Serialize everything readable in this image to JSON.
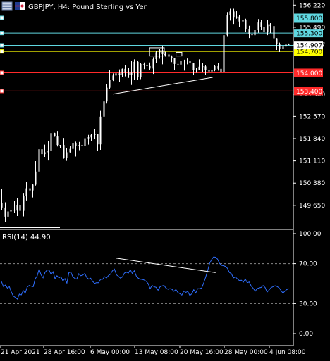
{
  "chart": {
    "symbol_label": "GBPJPY, H4:  Pound Sterling vs Yen",
    "rsi_label": "RSI(14) 44.90"
  },
  "colors": {
    "background": "#000000",
    "candle": "#ffffff",
    "hline_cyan": "#5fd7e0",
    "hline_yellow": "#ffff00",
    "hline_red": "#ff2a2a",
    "rsi_line": "#2f6fff",
    "rsi_level": "#888888",
    "trend": "#ffffff"
  },
  "chart_data": [
    {
      "type": "candlestick",
      "title": "GBPJPY, H4:  Pound Sterling vs Yen",
      "ylim": [
        149.0,
        156.25
      ],
      "y_ticks": [
        "156.220",
        "155.490",
        "154.907",
        "153.300",
        "152.570",
        "151.840",
        "151.110",
        "150.380",
        "149.650"
      ],
      "x_ticks": [
        "21 Apr 2021",
        "28 Apr 16:00",
        "6 May 00:00",
        "13 May 08:00",
        "20 May 16:00",
        "28 May 00:00",
        "4 Jun 08:00"
      ],
      "x_range": [
        0,
        100
      ],
      "current_price": "154.907",
      "horizontal_levels": [
        {
          "price": 155.8,
          "label": "155.800",
          "color": "#5fd7e0"
        },
        {
          "price": 155.3,
          "label": "155.300",
          "color": "#5fd7e0"
        },
        {
          "price": 154.9,
          "label": "",
          "color": "#5fd7e0"
        },
        {
          "price": 154.7,
          "label": "154.700",
          "color": "#ffff00"
        },
        {
          "price": 154.0,
          "label": "154.000",
          "color": "#ff2a2a"
        },
        {
          "price": 153.4,
          "label": "153.400",
          "color": "#ff2a2a"
        }
      ],
      "trendlines": [
        {
          "x": [
            38.5,
            72.5
          ],
          "y": [
            153.3,
            153.85
          ]
        }
      ],
      "rectangles": [
        {
          "x": [
            51,
            56
          ],
          "y": [
            154.55,
            154.82
          ]
        },
        {
          "x": [
            60,
            62
          ],
          "y": [
            154.55,
            154.67
          ]
        }
      ],
      "candles": [
        [
          149.72,
          149.58,
          150.2,
          149.5
        ],
        [
          149.58,
          149.28,
          149.75,
          149.1
        ],
        [
          149.28,
          149.45,
          149.6,
          149.15
        ],
        [
          149.45,
          149.5,
          149.7,
          149.3
        ],
        [
          149.5,
          149.48,
          149.8,
          149.4
        ],
        [
          149.48,
          149.66,
          149.9,
          149.3
        ],
        [
          149.66,
          149.47,
          149.95,
          149.4
        ],
        [
          149.47,
          149.96,
          150.06,
          149.29
        ],
        [
          149.96,
          150.21,
          150.42,
          149.81
        ],
        [
          150.21,
          150.14,
          150.25,
          149.86
        ],
        [
          150.14,
          150.33,
          150.35,
          149.91
        ],
        [
          150.33,
          150.76,
          151.1,
          150.3
        ],
        [
          150.76,
          151.49,
          151.77,
          150.48
        ],
        [
          151.49,
          151.33,
          151.69,
          151.13
        ],
        [
          151.33,
          151.39,
          151.64,
          151.24
        ],
        [
          151.39,
          151.44,
          151.75,
          151.12
        ],
        [
          151.44,
          152.02,
          152.22,
          151.36
        ],
        [
          152.02,
          151.93,
          152.03,
          151.92
        ],
        [
          151.93,
          151.63,
          152.09,
          151.58
        ],
        [
          151.63,
          151.63,
          151.63,
          151.54
        ],
        [
          151.63,
          151.2,
          151.86,
          151.18
        ],
        [
          151.2,
          151.39,
          151.53,
          151.11
        ],
        [
          151.39,
          151.5,
          151.6,
          151.38
        ],
        [
          151.5,
          151.7,
          151.98,
          151.55
        ],
        [
          151.7,
          151.59,
          151.74,
          151.25
        ],
        [
          151.59,
          151.63,
          151.73,
          151.46
        ],
        [
          151.63,
          151.6,
          151.92,
          151.35
        ],
        [
          151.6,
          151.85,
          151.91,
          151.54
        ],
        [
          151.85,
          151.88,
          151.96,
          151.64
        ],
        [
          151.88,
          151.96,
          152.0,
          151.77
        ],
        [
          151.96,
          151.99,
          152.14,
          151.84
        ],
        [
          151.99,
          151.65,
          151.99,
          151.43
        ],
        [
          151.65,
          152.56,
          152.75,
          151.47
        ],
        [
          152.56,
          153.06,
          153.09,
          152.53
        ],
        [
          153.06,
          153.51,
          153.63,
          152.99
        ],
        [
          153.51,
          153.77,
          154.09,
          153.47
        ],
        [
          153.77,
          153.91,
          153.98,
          153.73
        ],
        [
          153.91,
          153.98,
          154.09,
          153.71
        ],
        [
          153.98,
          153.93,
          154.11,
          153.69
        ],
        [
          153.93,
          154.13,
          154.14,
          153.86
        ],
        [
          154.13,
          154.0,
          154.25,
          153.88
        ],
        [
          154.0,
          153.93,
          154.17,
          153.83
        ],
        [
          153.93,
          154.0,
          154.4,
          153.6
        ],
        [
          154.0,
          154.36,
          154.44,
          153.77
        ],
        [
          154.36,
          153.86,
          154.4,
          153.78
        ],
        [
          153.86,
          154.29,
          154.33,
          153.79
        ],
        [
          154.29,
          154.25,
          154.34,
          154.12
        ],
        [
          154.25,
          154.22,
          154.47,
          154.13
        ],
        [
          154.22,
          154.14,
          154.34,
          154.08
        ],
        [
          154.14,
          154.45,
          154.51,
          153.96
        ],
        [
          154.45,
          154.67,
          154.72,
          154.31
        ],
        [
          154.67,
          154.74,
          154.79,
          154.46
        ],
        [
          154.74,
          154.61,
          154.89,
          154.28
        ],
        [
          154.61,
          154.6,
          154.69,
          154.53
        ],
        [
          154.6,
          154.53,
          154.69,
          154.39
        ],
        [
          154.53,
          154.48,
          154.57,
          154.35
        ],
        [
          154.48,
          154.29,
          154.48,
          154.08
        ],
        [
          154.29,
          154.27,
          154.51,
          154.11
        ],
        [
          154.27,
          154.4,
          154.5,
          154.26
        ],
        [
          154.4,
          154.4,
          154.43,
          154.07
        ],
        [
          154.4,
          154.38,
          154.47,
          154.28
        ],
        [
          154.38,
          154.31,
          154.5,
          154.11
        ],
        [
          154.31,
          154.08,
          154.33,
          153.92
        ],
        [
          154.08,
          154.1,
          154.15,
          154.0
        ],
        [
          154.1,
          154.2,
          154.44,
          154.09
        ],
        [
          154.2,
          154.21,
          154.32,
          154.03
        ],
        [
          154.21,
          154.09,
          154.24,
          153.93
        ],
        [
          154.09,
          154.04,
          154.27,
          154.01
        ],
        [
          154.04,
          154.08,
          154.09,
          153.88
        ],
        [
          154.08,
          154.22,
          154.24,
          154.05
        ],
        [
          154.22,
          154.13,
          154.32,
          154.07
        ],
        [
          154.13,
          154.01,
          154.3,
          153.82
        ],
        [
          154.01,
          155.23,
          155.4,
          153.88
        ],
        [
          155.23,
          155.9,
          155.99,
          155.2
        ],
        [
          155.9,
          156.01,
          156.1,
          155.71
        ],
        [
          156.01,
          155.83,
          156.1,
          155.6
        ],
        [
          155.83,
          155.84,
          156.02,
          155.77
        ],
        [
          155.84,
          155.68,
          155.9,
          155.5
        ],
        [
          155.68,
          155.74,
          155.87,
          155.46
        ],
        [
          155.74,
          155.44,
          155.77,
          155.35
        ],
        [
          155.44,
          155.26,
          155.54,
          155.14
        ],
        [
          155.26,
          155.23,
          155.48,
          155.07
        ],
        [
          155.23,
          155.41,
          155.56,
          155.07
        ],
        [
          155.41,
          155.67,
          155.76,
          155.31
        ],
        [
          155.67,
          155.51,
          155.74,
          155.41
        ],
        [
          155.51,
          155.34,
          155.68,
          155.15
        ],
        [
          155.34,
          155.59,
          155.74,
          155.23
        ],
        [
          155.59,
          155.53,
          155.63,
          155.3
        ],
        [
          155.53,
          155.13,
          155.71,
          155.09
        ],
        [
          155.13,
          154.95,
          155.14,
          154.75
        ],
        [
          154.95,
          154.79,
          154.99,
          154.68
        ],
        [
          154.79,
          154.86,
          155.09,
          154.8
        ],
        [
          154.86,
          154.93,
          154.98,
          154.66
        ],
        [
          154.93,
          154.92,
          154.96,
          154.91
        ]
      ]
    },
    {
      "type": "line",
      "title": "RSI(14) 44.90",
      "ylim": [
        0,
        100
      ],
      "y_ticks": [
        "100.00",
        "70.00",
        "30.00",
        "0.00"
      ],
      "levels": [
        70,
        30
      ],
      "x_range": [
        0,
        100
      ],
      "series": [
        {
          "values": [
            52.0,
            47.0,
            48.5,
            45.5,
            46.9,
            41.5,
            37.5,
            36.2,
            34.5,
            39.5,
            38.7,
            43.1,
            40.5,
            46.6,
            48.1,
            47.4,
            46.9,
            54.8,
            57.7,
            64.5,
            58.7,
            55.8,
            61.3,
            63.5,
            63.6,
            59.2,
            61.9,
            54.9,
            57.9,
            55.7,
            57.0,
            52.7,
            55.0,
            50.5,
            61.0,
            61.5,
            56.8,
            55.2,
            54.5,
            59.9,
            57.9,
            58.5,
            60.2,
            56.2,
            54.5,
            55.4,
            52.2,
            50.2,
            51.0,
            50.9,
            54.4,
            54.3,
            56.9,
            55.7,
            58.1,
            59.5,
            62.8,
            64.5,
            58.7,
            57.3,
            55.5,
            56.7,
            60.5,
            61.7,
            60.5,
            63.7,
            60.2,
            62.8,
            57.6,
            55.4,
            54.4,
            54.2,
            53.6,
            52.4,
            50.0,
            44.9,
            48.2,
            46.8,
            46.3,
            43.4,
            46.8,
            47.6,
            48.2,
            45.5,
            44.3,
            45.0,
            44.3,
            42.3,
            44.1,
            41.1,
            39.9,
            38.5,
            42.6,
            41.3,
            42.2,
            38.2,
            39.8,
            43.9,
            40.6,
            44.9,
            44.9,
            45.6,
            50.6,
            56.5,
            62.9,
            70.3,
            74.0,
            76.7,
            76.4,
            74.5,
            70.3,
            68.3,
            67.9,
            67.2,
            65.3,
            61.1,
            59.9,
            55.7,
            56.7,
            54.7,
            53.0,
            53.4,
            51.4,
            54.6,
            50.9,
            51.6,
            47.5,
            45.2,
            42.4,
            45.0,
            45.7,
            46.2,
            48.0,
            46.1,
            41.5,
            43.6,
            46.0,
            46.9,
            47.8,
            47.1,
            45.8,
            43.2,
            40.4,
            42.6,
            44.1,
            44.9
          ]
        }
      ],
      "trendlines": [
        {
          "x": [
            39.5,
            73.5
          ],
          "y": [
            75.5,
            61.0
          ]
        }
      ]
    }
  ]
}
